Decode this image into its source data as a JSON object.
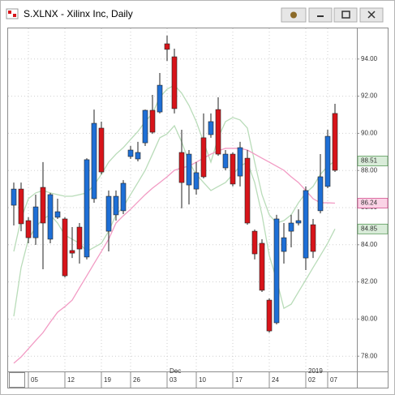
{
  "chart_data": {
    "type": "candlestick",
    "title": "S.XLNX - Xilinx Inc, Daily",
    "categories": [
      null,
      null,
      "05",
      null,
      null,
      null,
      null,
      "12",
      null,
      null,
      null,
      null,
      "19",
      null,
      null,
      null,
      "26",
      null,
      null,
      null,
      null,
      "03",
      null,
      null,
      null,
      "10",
      null,
      null,
      null,
      null,
      "17",
      null,
      null,
      null,
      null,
      "24",
      null,
      null,
      null,
      null,
      "02",
      null,
      null,
      "07",
      null
    ],
    "period_labels": [
      null,
      null,
      null,
      null,
      null,
      null,
      null,
      null,
      null,
      null,
      null,
      null,
      null,
      null,
      null,
      null,
      null,
      null,
      null,
      null,
      null,
      "Dec",
      null,
      null,
      null,
      null,
      null,
      null,
      null,
      null,
      null,
      null,
      null,
      null,
      null,
      null,
      null,
      null,
      null,
      null,
      "2019",
      null,
      null,
      null,
      null
    ],
    "candles": {
      "open": [
        86.13,
        87.0,
        85.3,
        84.38,
        87.09,
        84.3,
        85.48,
        85.39,
        83.69,
        84.95,
        83.34,
        86.48,
        90.28,
        84.73,
        85.61,
        85.83,
        88.75,
        88.62,
        89.49,
        91.24,
        91.15,
        94.82,
        94.12,
        88.97,
        87.22,
        87.0,
        89.76,
        89.93,
        91.28,
        88.14,
        88.88,
        87.7,
        88.66,
        84.73,
        84.08,
        81.02,
        79.8,
        83.64,
        84.73,
        85.17,
        83.29,
        85.08,
        85.83,
        87.14,
        91.07
      ],
      "high": [
        87.35,
        87.35,
        85.48,
        86.7,
        88.45,
        86.79,
        86.48,
        85.48,
        84.95,
        85.17,
        88.66,
        91.28,
        90.63,
        86.92,
        86.92,
        87.48,
        89.32,
        89.54,
        91.28,
        92.07,
        93.25,
        95.26,
        94.56,
        90.19,
        89.1,
        88.45,
        91.07,
        91.07,
        91.94,
        89.1,
        88.97,
        89.54,
        89.1,
        84.82,
        84.3,
        81.11,
        85.61,
        85.17,
        85.61,
        85.91,
        87.14,
        85.39,
        88.88,
        90.19,
        91.59
      ],
      "low": [
        85.04,
        84.73,
        84.08,
        83.99,
        82.68,
        84.08,
        85.39,
        82.24,
        83.29,
        82.99,
        83.21,
        86.26,
        87.79,
        83.64,
        85.3,
        85.65,
        88.62,
        88.49,
        89.32,
        89.97,
        91.07,
        93.9,
        91.07,
        85.96,
        86.17,
        86.7,
        87.57,
        89.76,
        88.79,
        88.01,
        87.14,
        87.14,
        85.08,
        83.21,
        81.46,
        79.27,
        79.71,
        82.99,
        83.86,
        85.04,
        82.64,
        83.29,
        85.69,
        87.05,
        87.92
      ],
      "close": [
        87.0,
        85.13,
        84.38,
        86.04,
        85.17,
        86.7,
        85.78,
        82.33,
        83.55,
        83.77,
        88.58,
        90.54,
        87.92,
        86.61,
        86.61,
        87.31,
        89.1,
        88.97,
        91.24,
        90.06,
        92.59,
        94.52,
        91.33,
        87.35,
        88.88,
        87.88,
        87.66,
        90.63,
        88.88,
        88.88,
        87.27,
        89.23,
        85.17,
        83.51,
        81.55,
        79.36,
        85.39,
        84.38,
        85.17,
        85.3,
        86.92,
        83.64,
        87.66,
        89.84,
        88.01
      ],
      "up_color": "#1e6fd6",
      "down_color": "#d7141a"
    },
    "lines": [
      {
        "color": "#b9dcb9",
        "values": [
          83.64,
          85.39,
          86.48,
          86.79,
          86.92,
          86.79,
          86.7,
          86.61,
          86.61,
          86.7,
          86.79,
          87.22,
          87.79,
          88.45,
          88.88,
          89.23,
          89.67,
          90.1,
          90.63,
          91.07,
          91.94,
          92.38,
          92.59,
          92.16,
          91.5,
          90.63,
          89.54,
          88.45,
          89.76,
          90.63,
          90.85,
          90.72,
          90.28,
          88.45,
          86.7,
          85.61,
          85.17,
          85.3,
          85.61,
          86.26,
          86.79,
          87.14,
          87.79,
          88.23,
          88.51
        ],
        "badge_color": "#d9ecd9"
      },
      {
        "color": "#f29bc4",
        "values": [
          77.62,
          77.96,
          78.4,
          78.84,
          79.27,
          79.84,
          80.37,
          80.67,
          81.02,
          81.68,
          82.33,
          82.99,
          83.64,
          84.3,
          85.17,
          85.56,
          85.91,
          86.31,
          86.7,
          87.05,
          87.35,
          87.66,
          88.01,
          88.14,
          88.23,
          88.45,
          88.66,
          88.88,
          89.06,
          89.19,
          89.19,
          89.19,
          89.1,
          88.88,
          88.66,
          88.45,
          88.23,
          88.01,
          87.66,
          87.35,
          86.92,
          86.48,
          86.26,
          86.26,
          86.24
        ],
        "badge_color": "#fbd3e6"
      },
      {
        "color": "#b9dcb9",
        "values": [
          80.15,
          82.77,
          84.3,
          84.95,
          85.39,
          85.61,
          85.17,
          84.52,
          84.3,
          84.08,
          83.64,
          83.86,
          84.08,
          84.73,
          85.61,
          86.04,
          86.7,
          87.35,
          88.01,
          88.88,
          89.76,
          89.97,
          90.41,
          89.54,
          88.45,
          87.79,
          87.35,
          86.92,
          87.14,
          87.35,
          87.79,
          88.23,
          88.45,
          87.35,
          85.61,
          83.42,
          82.11,
          80.58,
          80.8,
          81.46,
          82.11,
          82.77,
          83.42,
          84.08,
          84.85
        ],
        "badge_color": "#d9ecd9"
      }
    ],
    "ylim": [
      77.18,
      95.65
    ],
    "yticks": [
      {
        "value": 78,
        "label": "78.00"
      },
      {
        "value": 80,
        "label": "80.00"
      },
      {
        "value": 82,
        "label": "82.00"
      },
      {
        "value": 84,
        "label": "84.00"
      },
      {
        "value": 86,
        "label": "86.00"
      },
      {
        "value": 88,
        "label": "88.00"
      },
      {
        "value": 90,
        "label": "90.00"
      },
      {
        "value": 92,
        "label": "92.00"
      },
      {
        "value": 94,
        "label": "94.00"
      }
    ],
    "grid": true
  }
}
